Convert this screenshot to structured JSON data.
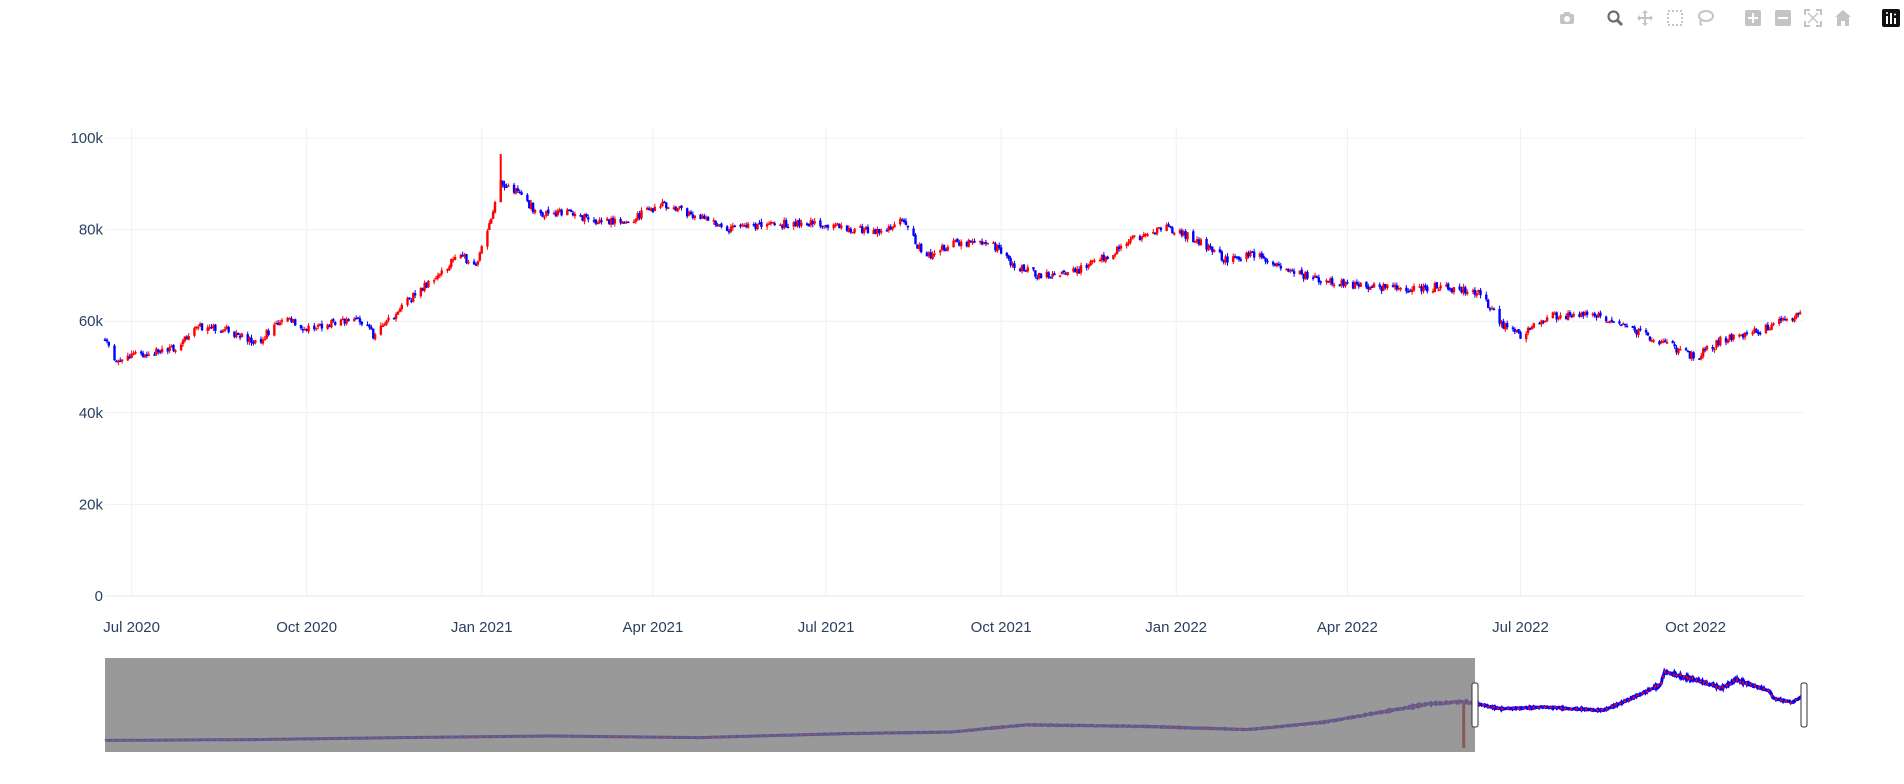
{
  "modebar": {
    "buttons": [
      {
        "name": "camera-icon",
        "title": "Download plot as a png"
      },
      {
        "name": "zoom-icon",
        "title": "Zoom"
      },
      {
        "name": "pan-icon",
        "title": "Pan"
      },
      {
        "name": "box-select-icon",
        "title": "Box Select"
      },
      {
        "name": "lasso-select-icon",
        "title": "Lasso Select"
      },
      {
        "name": "zoom-in-icon",
        "title": "Zoom in"
      },
      {
        "name": "zoom-out-icon",
        "title": "Zoom out"
      },
      {
        "name": "autoscale-icon",
        "title": "Autoscale"
      },
      {
        "name": "reset-axes-icon",
        "title": "Reset axes"
      },
      {
        "name": "plotly-logo-icon",
        "title": "Produced with Plotly"
      }
    ],
    "icon_color": "#c4c4c4",
    "active_color": "#6e6e6e"
  },
  "chart_data": {
    "type": "candlestick",
    "title": "",
    "xlabel": "",
    "ylabel": "",
    "x_range": [
      "2020-06-17",
      "2022-11-27"
    ],
    "ylim": [
      0,
      100000
    ],
    "y_ticks": [
      0,
      20000,
      40000,
      60000,
      80000,
      100000
    ],
    "y_tick_labels": [
      "0",
      "20k",
      "40k",
      "60k",
      "80k",
      "100k"
    ],
    "x_ticks": [
      "2020-07-01",
      "2020-10-01",
      "2021-01-01",
      "2021-04-01",
      "2021-07-01",
      "2021-10-01",
      "2022-01-01",
      "2022-04-01",
      "2022-07-01",
      "2022-10-01"
    ],
    "x_tick_labels": [
      "Jul 2020",
      "Oct 2020",
      "Jan 2021",
      "Apr 2021",
      "Jul 2021",
      "Oct 2021",
      "Jan 2022",
      "Apr 2022",
      "Jul 2022",
      "Oct 2022"
    ],
    "increasing_color": "#ff0000",
    "decreasing_color": "#0000ff",
    "grid": true,
    "price_path": [
      [
        "2020-06-17",
        56000
      ],
      [
        "2020-06-23",
        51500
      ],
      [
        "2020-07-10",
        53000
      ],
      [
        "2020-07-25",
        54000
      ],
      [
        "2020-08-05",
        59000
      ],
      [
        "2020-08-20",
        58000
      ],
      [
        "2020-09-05",
        55500
      ],
      [
        "2020-09-20",
        61000
      ],
      [
        "2020-10-01",
        58000
      ],
      [
        "2020-10-15",
        60000
      ],
      [
        "2020-10-28",
        60500
      ],
      [
        "2020-11-05",
        57000
      ],
      [
        "2020-11-20",
        63000
      ],
      [
        "2020-12-05",
        69000
      ],
      [
        "2020-12-20",
        74000
      ],
      [
        "2020-12-30",
        73000
      ],
      [
        "2021-01-07",
        84000
      ],
      [
        "2021-01-11",
        90000
      ],
      [
        "2021-01-20",
        88000
      ],
      [
        "2021-02-01",
        83000
      ],
      [
        "2021-02-15",
        84000
      ],
      [
        "2021-03-01",
        82000
      ],
      [
        "2021-03-20",
        82000
      ],
      [
        "2021-04-05",
        85500
      ],
      [
        "2021-04-25",
        83000
      ],
      [
        "2021-05-10",
        80000
      ],
      [
        "2021-06-01",
        81000
      ],
      [
        "2021-06-20",
        81500
      ],
      [
        "2021-07-10",
        80500
      ],
      [
        "2021-08-01",
        79500
      ],
      [
        "2021-08-10",
        82000
      ],
      [
        "2021-08-22",
        74000
      ],
      [
        "2021-09-05",
        77000
      ],
      [
        "2021-09-25",
        77500
      ],
      [
        "2021-10-05",
        73000
      ],
      [
        "2021-10-20",
        70000
      ],
      [
        "2021-11-10",
        71000
      ],
      [
        "2021-11-25",
        74000
      ],
      [
        "2021-12-10",
        78000
      ],
      [
        "2021-12-28",
        80500
      ],
      [
        "2022-01-15",
        77000
      ],
      [
        "2022-01-28",
        73000
      ],
      [
        "2022-02-10",
        75000
      ],
      [
        "2022-03-01",
        71000
      ],
      [
        "2022-03-20",
        69000
      ],
      [
        "2022-04-10",
        67500
      ],
      [
        "2022-05-01",
        67000
      ],
      [
        "2022-05-20",
        67500
      ],
      [
        "2022-06-10",
        66000
      ],
      [
        "2022-06-22",
        59000
      ],
      [
        "2022-07-01",
        57000
      ],
      [
        "2022-07-15",
        61000
      ],
      [
        "2022-08-05",
        61500
      ],
      [
        "2022-08-20",
        60000
      ],
      [
        "2022-09-10",
        56000
      ],
      [
        "2022-10-01",
        52000
      ],
      [
        "2022-10-15",
        56000
      ],
      [
        "2022-11-05",
        58000
      ],
      [
        "2022-11-27",
        62000
      ]
    ],
    "rangeslider": {
      "visible": true,
      "full_range": [
        "2000-01-04",
        "2022-11-27"
      ],
      "window": [
        "2020-06-17",
        "2022-11-27"
      ],
      "outlier_wick_date": "2018-04-27",
      "path": [
        [
          "2000-01-04",
          4500
        ],
        [
          "2002-01-01",
          5500
        ],
        [
          "2004-01-01",
          8000
        ],
        [
          "2006-01-01",
          10000
        ],
        [
          "2008-01-01",
          8000
        ],
        [
          "2010-01-01",
          13000
        ],
        [
          "2011-06-01",
          15000
        ],
        [
          "2012-06-01",
          24000
        ],
        [
          "2014-01-01",
          22000
        ],
        [
          "2015-06-01",
          18000
        ],
        [
          "2016-06-01",
          27000
        ],
        [
          "2017-11-01",
          50000
        ],
        [
          "2018-04-27",
          53000
        ],
        [
          "2018-11-01",
          44000
        ],
        [
          "2019-06-01",
          46000
        ],
        [
          "2020-03-15",
          42000
        ],
        [
          "2020-06-17",
          52000
        ],
        [
          "2020-12-20",
          74000
        ],
        [
          "2021-01-11",
          90000
        ],
        [
          "2021-06-01",
          81000
        ],
        [
          "2021-10-20",
          70000
        ],
        [
          "2021-12-28",
          80500
        ],
        [
          "2022-06-10",
          66000
        ],
        [
          "2022-07-01",
          57000
        ],
        [
          "2022-10-01",
          52000
        ],
        [
          "2022-11-27",
          62000
        ]
      ]
    }
  }
}
